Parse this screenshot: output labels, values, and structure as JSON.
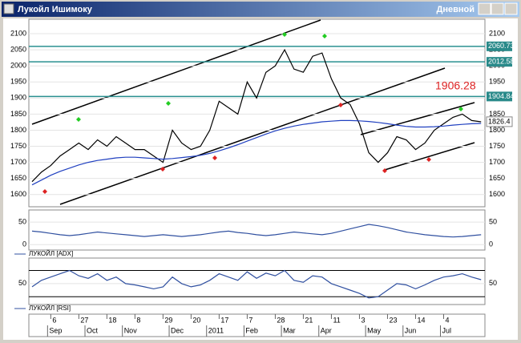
{
  "window": {
    "title": "Лукойл Ишимоку",
    "timeframe": "Дневной"
  },
  "chart_data": [
    {
      "type": "line",
      "categories": [
        null,
        null,
        "6",
        null,
        null,
        "27",
        null,
        null,
        "18",
        null,
        null,
        "8",
        null,
        null,
        "29",
        null,
        null,
        "20",
        null,
        null,
        "17",
        null,
        null,
        "7",
        null,
        null,
        "28",
        null,
        null,
        "21",
        null,
        null,
        "11",
        null,
        null,
        "3",
        null,
        null,
        "23",
        null,
        null,
        "14",
        null,
        null,
        "4",
        null,
        null,
        null,
        null
      ],
      "months": [
        null,
        null,
        "Sep",
        null,
        null,
        null,
        "Oct",
        null,
        null,
        null,
        "Nov",
        null,
        null,
        null,
        null,
        "Dec",
        null,
        null,
        null,
        "2011",
        null,
        null,
        null,
        "Feb",
        null,
        null,
        null,
        "Mar",
        null,
        null,
        null,
        "Apr",
        null,
        null,
        null,
        null,
        "May",
        null,
        null,
        null,
        "Jun",
        null,
        null,
        null,
        "Jul",
        null,
        null,
        null,
        null
      ],
      "series": [
        {
          "color": "#000000",
          "values": [
            1640,
            1670,
            1690,
            1720,
            1740,
            1760,
            1740,
            1770,
            1750,
            1780,
            1760,
            1740,
            1740,
            1720,
            1700,
            1800,
            1760,
            1740,
            1750,
            1800,
            1890,
            1870,
            1850,
            1950,
            1900,
            1980,
            2000,
            2050,
            1990,
            1980,
            2030,
            2040,
            1960,
            1900,
            1880,
            1820,
            1730,
            1700,
            1730,
            1780,
            1770,
            1740,
            1760,
            1800,
            1820,
            1840,
            1850,
            1830,
            1826
          ]
        },
        {
          "color": "#2040c0",
          "values": [
            1630,
            1645,
            1660,
            1672,
            1682,
            1692,
            1700,
            1706,
            1710,
            1714,
            1716,
            1716,
            1714,
            1712,
            1710,
            1712,
            1715,
            1718,
            1722,
            1728,
            1736,
            1745,
            1755,
            1766,
            1777,
            1788,
            1798,
            1806,
            1813,
            1818,
            1822,
            1826,
            1828,
            1830,
            1830,
            1829,
            1827,
            1824,
            1820,
            1816,
            1812,
            1810,
            1810,
            1811,
            1813,
            1816,
            1818,
            1820,
            1821
          ]
        }
      ],
      "ylim": [
        1562,
        2145
      ],
      "yticks": [
        1600,
        1650,
        1700,
        1750,
        1800,
        1850,
        1900,
        1950,
        2000,
        2050,
        2100
      ],
      "levels": [
        2060.73,
        2012.58,
        1904.84
      ],
      "last_price": 1826.4,
      "annotation": 1906.28
    },
    {
      "type": "line",
      "series": [
        {
          "name": "ЛУКОЙЛ [ADX]",
          "color": "#3050a0",
          "values": [
            30,
            28,
            25,
            22,
            20,
            22,
            25,
            28,
            26,
            24,
            22,
            20,
            18,
            20,
            22,
            20,
            18,
            20,
            22,
            25,
            28,
            30,
            27,
            25,
            22,
            20,
            22,
            25,
            28,
            26,
            24,
            22,
            25,
            30,
            35,
            40,
            45,
            42,
            38,
            33,
            28,
            25,
            22,
            20,
            18,
            17,
            18,
            20,
            22
          ]
        }
      ],
      "ylim": [
        -12,
        77
      ],
      "yticks": [
        0,
        50
      ]
    },
    {
      "type": "line",
      "series": [
        {
          "name": "ЛУКОЙЛ [RSI]",
          "color": "#3050a0",
          "values": [
            45,
            55,
            60,
            65,
            70,
            62,
            58,
            65,
            55,
            60,
            50,
            48,
            45,
            42,
            45,
            60,
            50,
            45,
            48,
            55,
            65,
            60,
            55,
            68,
            58,
            66,
            62,
            70,
            55,
            52,
            62,
            60,
            50,
            45,
            40,
            35,
            28,
            30,
            40,
            50,
            48,
            42,
            48,
            55,
            60,
            62,
            65,
            60,
            56
          ]
        }
      ],
      "ylim": [
        18,
        89
      ],
      "yticks": [
        50
      ],
      "levels": [
        70,
        30
      ]
    }
  ]
}
